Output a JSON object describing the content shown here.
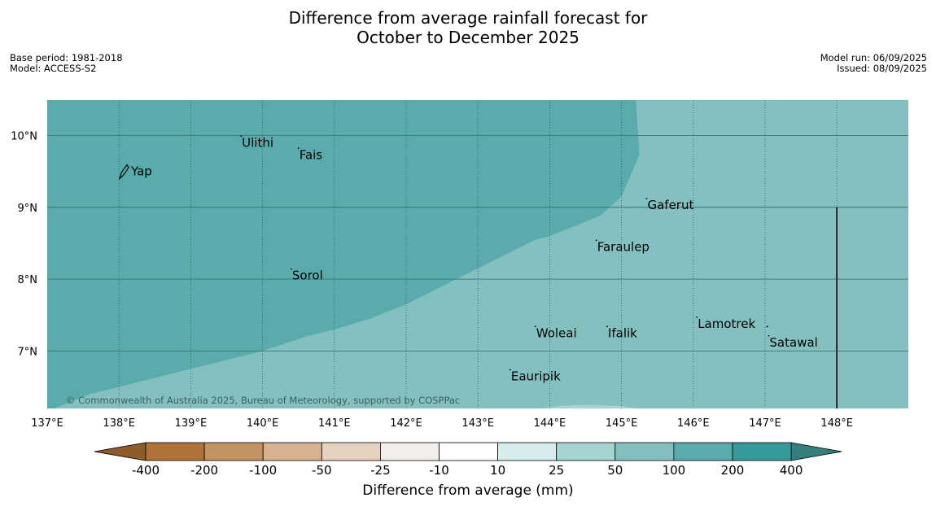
{
  "title_line1": "Difference from average rainfall forecast for",
  "title_line2": "October to December 2025",
  "meta_left": [
    "Base period: 1981-2018",
    "Model: ACCESS-S2"
  ],
  "meta_right": [
    "Model run: 06/09/2025",
    "Issued: 08/09/2025"
  ],
  "copyright": "© Commonwealth of Australia 2025, Bureau of Meteorology, supported by COSPPac",
  "map": {
    "lon_range": [
      137,
      149
    ],
    "lat_range": [
      6.2,
      10.5
    ],
    "lon_ticks": [
      137,
      138,
      139,
      140,
      141,
      142,
      143,
      144,
      145,
      146,
      147,
      148
    ],
    "lon_tick_labels": [
      "137°E",
      "138°E",
      "139°E",
      "140°E",
      "141°E",
      "142°E",
      "143°E",
      "144°E",
      "145°E",
      "146°E",
      "147°E",
      "148°E"
    ],
    "lat_ticks": [
      7,
      8,
      9,
      10
    ],
    "lat_tick_labels": [
      "7°N",
      "8°N",
      "9°N",
      "10°N"
    ],
    "color_100_200": "#5aabab",
    "color_50_100": "#84c0bf",
    "color_25_50": "#a6d4d3",
    "region_100_200_boundary": [
      [
        137.1,
        6.2
      ],
      [
        137.6,
        6.4
      ],
      [
        138.0,
        6.5
      ],
      [
        138.6,
        6.65
      ],
      [
        139.0,
        6.75
      ],
      [
        139.6,
        6.9
      ],
      [
        140.0,
        7.0
      ],
      [
        140.6,
        7.2
      ],
      [
        141.0,
        7.3
      ],
      [
        141.5,
        7.45
      ],
      [
        142.0,
        7.65
      ],
      [
        142.5,
        7.9
      ],
      [
        143.0,
        8.15
      ],
      [
        143.5,
        8.4
      ],
      [
        143.8,
        8.55
      ],
      [
        144.0,
        8.6
      ],
      [
        144.3,
        8.72
      ],
      [
        144.7,
        8.88
      ],
      [
        145.0,
        9.15
      ],
      [
        145.25,
        9.73
      ],
      [
        145.2,
        10.5
      ]
    ],
    "region_25_50_boundary": [
      [
        143.9,
        6.2
      ],
      [
        144.2,
        6.24
      ],
      [
        144.6,
        6.25
      ],
      [
        145.0,
        6.23
      ],
      [
        145.2,
        6.2
      ]
    ],
    "boundary_line": {
      "lon": 148,
      "lat_from": 6.2,
      "lat_to": 9.0
    },
    "islands": [
      {
        "name": "Yap",
        "lon": 138.1,
        "lat": 9.5
      },
      {
        "name": "Ulithi",
        "lon": 139.7,
        "lat": 9.9
      },
      {
        "name": "Fais",
        "lon": 140.5,
        "lat": 9.73
      },
      {
        "name": "Gaferut",
        "lon": 145.35,
        "lat": 9.03
      },
      {
        "name": "Faraulep",
        "lon": 144.65,
        "lat": 8.45
      },
      {
        "name": "Sorol",
        "lon": 140.4,
        "lat": 8.05
      },
      {
        "name": "Lamotrek",
        "lon": 146.05,
        "lat": 7.38
      },
      {
        "name": "Woleai",
        "lon": 143.8,
        "lat": 7.25
      },
      {
        "name": "Ifalik",
        "lon": 144.8,
        "lat": 7.25
      },
      {
        "name": "Satawal",
        "lon": 147.05,
        "lat": 7.12
      },
      {
        "name": "Eauripik",
        "lon": 143.45,
        "lat": 6.65
      }
    ]
  },
  "legend": {
    "title": "Difference from average (mm)",
    "boundaries": [
      "-400",
      "-200",
      "-100",
      "-50",
      "-25",
      "-10",
      "10",
      "25",
      "50",
      "100",
      "200",
      "400"
    ],
    "colors": [
      "#b07438",
      "#c49364",
      "#d6b290",
      "#e6d2c0",
      "#f2efea",
      "#ffffff",
      "#d7ecec",
      "#a6d4d3",
      "#84c0bf",
      "#5aabab",
      "#36999a"
    ],
    "under_color": "#8e5c28",
    "over_color": "#347e7f"
  }
}
